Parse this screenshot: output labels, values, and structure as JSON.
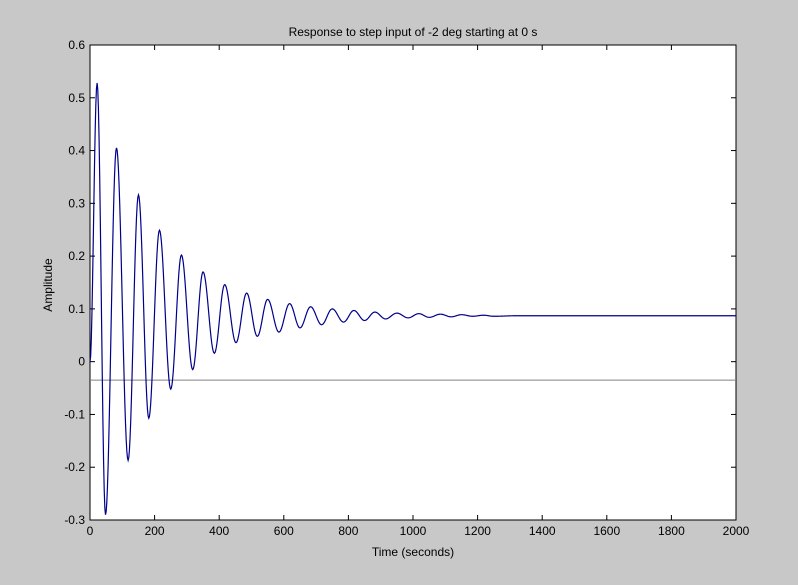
{
  "figure": {
    "background": "#c8c8c8"
  },
  "chart_data": {
    "type": "line",
    "title": "Response to step input of -2 deg starting at 0 s",
    "xlabel": "Time (seconds)",
    "ylabel": "Amplitude",
    "xlim": [
      0,
      2000
    ],
    "ylim": [
      -0.3,
      0.6
    ],
    "xticks": [
      0,
      200,
      400,
      600,
      800,
      1000,
      1200,
      1400,
      1600,
      1800,
      2000
    ],
    "yticks": [
      -0.3,
      -0.2,
      -0.1,
      0,
      0.1,
      0.2,
      0.3,
      0.4,
      0.5,
      0.6
    ],
    "xtick_labels": [
      "0",
      "200",
      "400",
      "600",
      "800",
      "1000",
      "1200",
      "1400",
      "1600",
      "1800",
      "2000"
    ],
    "ytick_labels": [
      "-0.3",
      "-0.2",
      "-0.1",
      "0",
      "0.1",
      "0.2",
      "0.3",
      "0.4",
      "0.5",
      "0.6"
    ],
    "grid": false,
    "series": [
      {
        "color": "#00008b",
        "steady_state": 0.087,
        "peaks": [
          {
            "x": 22,
            "y": 0.528
          },
          {
            "x": 48,
            "y": -0.29
          },
          {
            "x": 82,
            "y": 0.405
          },
          {
            "x": 118,
            "y": -0.187
          },
          {
            "x": 150,
            "y": 0.316
          },
          {
            "x": 182,
            "y": -0.107
          },
          {
            "x": 215,
            "y": 0.249
          },
          {
            "x": 250,
            "y": -0.052
          },
          {
            "x": 283,
            "y": 0.202
          },
          {
            "x": 318,
            "y": -0.015
          },
          {
            "x": 350,
            "y": 0.17
          },
          {
            "x": 385,
            "y": 0.016
          },
          {
            "x": 417,
            "y": 0.146
          },
          {
            "x": 452,
            "y": 0.036
          },
          {
            "x": 485,
            "y": 0.13
          },
          {
            "x": 518,
            "y": 0.048
          },
          {
            "x": 550,
            "y": 0.118
          },
          {
            "x": 585,
            "y": 0.056
          },
          {
            "x": 618,
            "y": 0.11
          },
          {
            "x": 650,
            "y": 0.064
          },
          {
            "x": 683,
            "y": 0.104
          },
          {
            "x": 717,
            "y": 0.07
          },
          {
            "x": 750,
            "y": 0.1
          },
          {
            "x": 785,
            "y": 0.075
          },
          {
            "x": 817,
            "y": 0.097
          },
          {
            "x": 850,
            "y": 0.078
          },
          {
            "x": 882,
            "y": 0.094
          },
          {
            "x": 915,
            "y": 0.081
          },
          {
            "x": 950,
            "y": 0.092
          },
          {
            "x": 985,
            "y": 0.083
          },
          {
            "x": 1018,
            "y": 0.091
          },
          {
            "x": 1050,
            "y": 0.084
          },
          {
            "x": 1085,
            "y": 0.09
          },
          {
            "x": 1118,
            "y": 0.085
          },
          {
            "x": 1150,
            "y": 0.089
          },
          {
            "x": 1185,
            "y": 0.086
          },
          {
            "x": 1218,
            "y": 0.088
          },
          {
            "x": 1250,
            "y": 0.086
          },
          {
            "x": 1320,
            "y": 0.087
          },
          {
            "x": 2000,
            "y": 0.087
          }
        ]
      },
      {
        "color": "#808080",
        "values_y": [
          -0.035,
          -0.035
        ],
        "values_x": [
          0,
          2000
        ]
      }
    ]
  }
}
